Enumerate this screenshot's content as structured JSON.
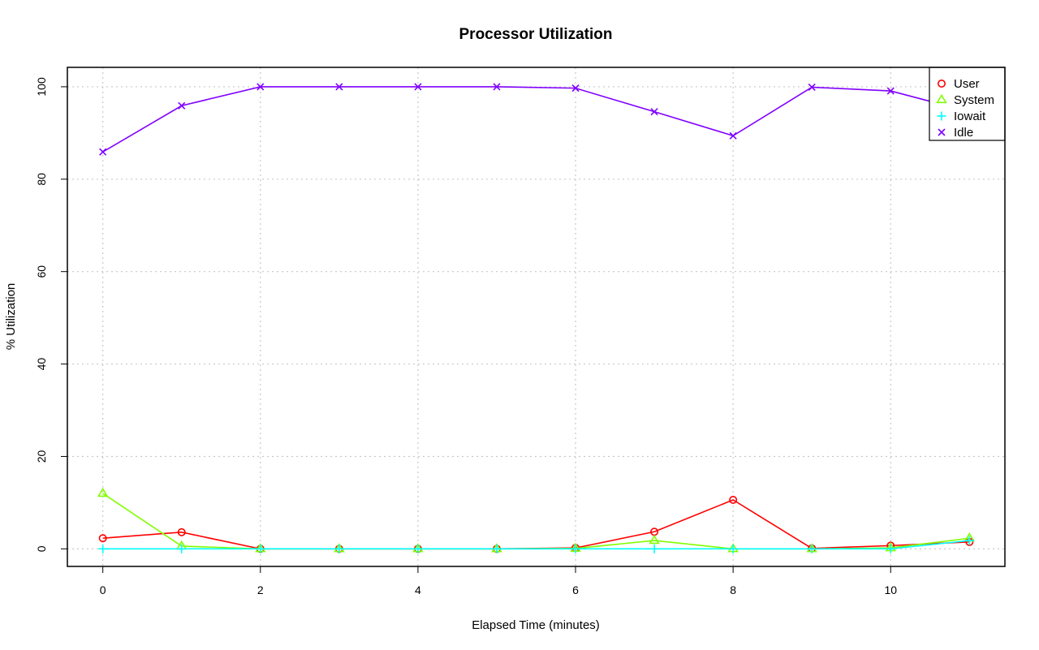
{
  "chart_data": {
    "type": "line",
    "title": "Processor Utilization",
    "xlabel": "Elapsed Time (minutes)",
    "ylabel": "% Utilization",
    "x": [
      0,
      1,
      2,
      3,
      4,
      5,
      6,
      7,
      8,
      9,
      10,
      11
    ],
    "xlim": [
      -0.45,
      11.45
    ],
    "ylim": [
      -3.8,
      104.2
    ],
    "xticks": [
      0,
      2,
      4,
      6,
      8,
      10
    ],
    "yticks": [
      0,
      20,
      40,
      60,
      80,
      100
    ],
    "grid": true,
    "legend_position": "top-right",
    "series": [
      {
        "name": "User",
        "color": "#ff0000",
        "marker": "circle",
        "values": [
          2.3,
          3.6,
          0.0,
          0.0,
          0.0,
          0.0,
          0.2,
          3.7,
          10.6,
          0.1,
          0.7,
          1.5
        ]
      },
      {
        "name": "System",
        "color": "#80ff00",
        "marker": "triangle",
        "values": [
          12.0,
          0.6,
          0.0,
          0.0,
          0.0,
          0.0,
          0.1,
          1.8,
          0.0,
          0.0,
          0.2,
          2.3
        ]
      },
      {
        "name": "Iowait",
        "color": "#00ffff",
        "marker": "plus",
        "values": [
          0.0,
          0.0,
          0.0,
          0.0,
          0.0,
          0.0,
          0.0,
          0.0,
          0.0,
          0.0,
          0.0,
          1.8
        ]
      },
      {
        "name": "Idle",
        "color": "#8000ff",
        "marker": "cross",
        "values": [
          85.9,
          95.9,
          100.0,
          100.0,
          100.0,
          100.0,
          99.7,
          94.6,
          89.4,
          99.9,
          99.1,
          94.6
        ]
      }
    ]
  }
}
